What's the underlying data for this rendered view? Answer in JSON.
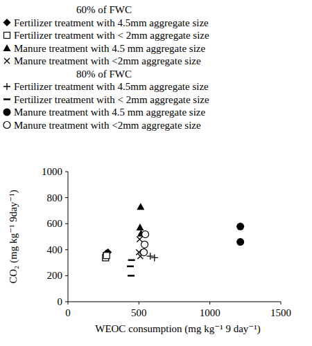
{
  "chart_data": {
    "type": "scatter",
    "x_label": "WEOC consumption (mg kg⁻¹ 9 day⁻¹)",
    "y_label": "CO₂ (mg kg⁻¹ 9day⁻¹)",
    "xlim": [
      0,
      1500
    ],
    "xticks": [
      0,
      500,
      1000,
      1500
    ],
    "ylim": [
      0,
      1000
    ],
    "yticks": [
      0,
      200,
      400,
      600,
      800,
      1000
    ],
    "grid": false,
    "legend": "top",
    "groups": [
      {
        "title": "60% of FWC",
        "series": [
          {
            "name": "Fertilizer treatment with 4.5mm aggregate size",
            "marker": "diamond",
            "color": "#000000",
            "x": [
              270,
              282
            ],
            "values": [
              372,
              380
            ]
          },
          {
            "name": "Fertilizer treatment with < 2mm aggregate size",
            "marker": "square-open",
            "color": "#000000",
            "x": [
              265,
              272
            ],
            "values": [
              338,
              355
            ]
          },
          {
            "name": "Manure treatment with 4.5 mm aggregate size",
            "marker": "triangle",
            "color": "#000000",
            "x": [
              512,
              508,
              515
            ],
            "values": [
              730,
              572,
              525
            ]
          },
          {
            "name": "Manure treatment with <2mm aggregate size",
            "marker": "x",
            "color": "#000000",
            "x": [
              505,
              500,
              510
            ],
            "values": [
              480,
              380,
              350
            ]
          }
        ]
      },
      {
        "title": "80% of FWC",
        "series": [
          {
            "name": "Fertilizer treatment with 4.5mm aggregate size",
            "marker": "plus",
            "color": "#000000",
            "x": [
              580,
              610
            ],
            "values": [
              350,
              338
            ]
          },
          {
            "name": "Fertilizer treatment with < 2mm aggregate size",
            "marker": "dash",
            "color": "#000000",
            "x": [
              448,
              440,
              445
            ],
            "values": [
              320,
              272,
              200
            ]
          },
          {
            "name": "Manure treatment with 4.5 mm aggregate size",
            "marker": "circle",
            "color": "#000000",
            "x": [
              1215,
              1215
            ],
            "values": [
              578,
              460
            ]
          },
          {
            "name": "Manure treatment with <2mm aggregate size",
            "marker": "circle-open",
            "color": "#000000",
            "x": [
              545,
              540,
              535
            ],
            "values": [
              518,
              440,
              380
            ]
          }
        ]
      }
    ]
  }
}
